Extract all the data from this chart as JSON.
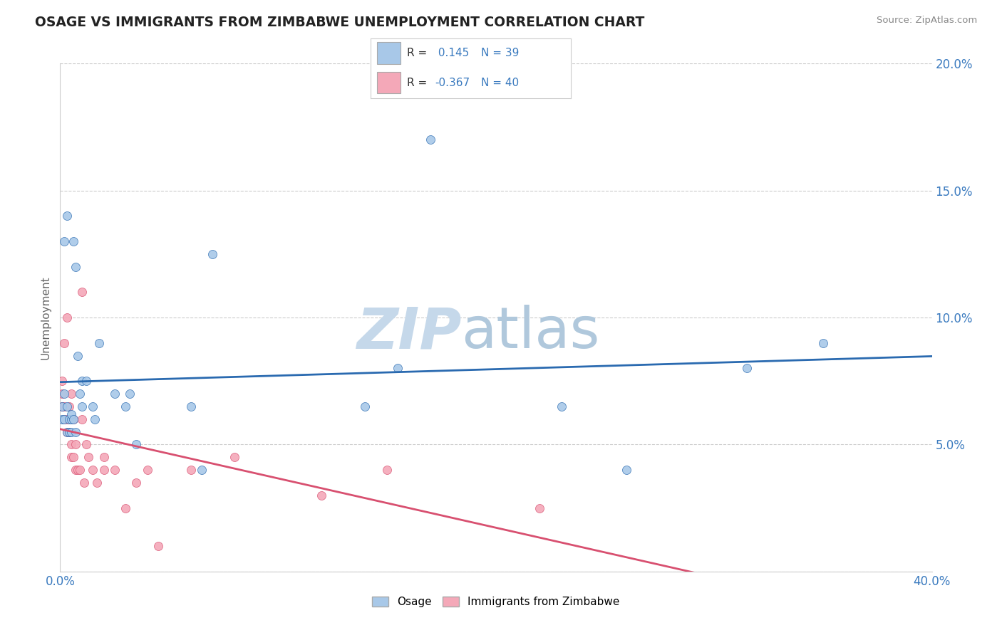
{
  "title": "OSAGE VS IMMIGRANTS FROM ZIMBABWE UNEMPLOYMENT CORRELATION CHART",
  "source": "Source: ZipAtlas.com",
  "ylabel": "Unemployment",
  "r_osage": 0.145,
  "n_osage": 39,
  "r_zimbabwe": -0.367,
  "n_zimbabwe": 40,
  "legend_label_osage": "Osage",
  "legend_label_zimbabwe": "Immigrants from Zimbabwe",
  "xlim": [
    0.0,
    0.4
  ],
  "ylim": [
    0.0,
    0.2
  ],
  "xticks": [
    0.0,
    0.05,
    0.1,
    0.15,
    0.2,
    0.25,
    0.3,
    0.35,
    0.4
  ],
  "yticks": [
    0.0,
    0.05,
    0.1,
    0.15,
    0.2
  ],
  "color_osage": "#a8c8e8",
  "color_zimbabwe": "#f4a8b8",
  "line_color_osage": "#2a6ab0",
  "line_color_zimbabwe": "#d85070",
  "bg_color": "#ffffff",
  "grid_color": "#cccccc",
  "title_color": "#222222",
  "axis_label_color": "#3a7abf",
  "watermark_zip_color": "#c5d8ea",
  "watermark_atlas_color": "#b0c8dc",
  "text_black": "#333333",
  "osage_x": [
    0.001,
    0.001,
    0.002,
    0.002,
    0.003,
    0.003,
    0.003,
    0.004,
    0.004,
    0.005,
    0.005,
    0.005,
    0.006,
    0.007,
    0.007,
    0.008,
    0.009,
    0.01,
    0.01,
    0.012,
    0.015,
    0.016,
    0.018,
    0.025,
    0.03,
    0.032,
    0.035,
    0.06,
    0.065,
    0.07,
    0.14,
    0.155,
    0.17,
    0.23,
    0.26,
    0.315,
    0.35,
    0.002,
    0.006
  ],
  "osage_y": [
    0.06,
    0.065,
    0.06,
    0.07,
    0.055,
    0.065,
    0.14,
    0.055,
    0.06,
    0.055,
    0.06,
    0.062,
    0.06,
    0.12,
    0.055,
    0.085,
    0.07,
    0.065,
    0.075,
    0.075,
    0.065,
    0.06,
    0.09,
    0.07,
    0.065,
    0.07,
    0.05,
    0.065,
    0.04,
    0.125,
    0.065,
    0.08,
    0.17,
    0.065,
    0.04,
    0.08,
    0.09,
    0.13,
    0.13
  ],
  "zimbabwe_x": [
    0.001,
    0.001,
    0.001,
    0.002,
    0.002,
    0.002,
    0.003,
    0.003,
    0.003,
    0.004,
    0.004,
    0.004,
    0.005,
    0.005,
    0.005,
    0.006,
    0.006,
    0.007,
    0.007,
    0.008,
    0.009,
    0.01,
    0.01,
    0.011,
    0.012,
    0.013,
    0.015,
    0.017,
    0.02,
    0.02,
    0.025,
    0.03,
    0.035,
    0.04,
    0.045,
    0.06,
    0.08,
    0.12,
    0.15,
    0.22
  ],
  "zimbabwe_y": [
    0.065,
    0.07,
    0.075,
    0.06,
    0.065,
    0.09,
    0.055,
    0.06,
    0.1,
    0.055,
    0.055,
    0.065,
    0.045,
    0.05,
    0.07,
    0.045,
    0.06,
    0.04,
    0.05,
    0.04,
    0.04,
    0.11,
    0.06,
    0.035,
    0.05,
    0.045,
    0.04,
    0.035,
    0.04,
    0.045,
    0.04,
    0.025,
    0.035,
    0.04,
    0.01,
    0.04,
    0.045,
    0.03,
    0.04,
    0.025
  ]
}
